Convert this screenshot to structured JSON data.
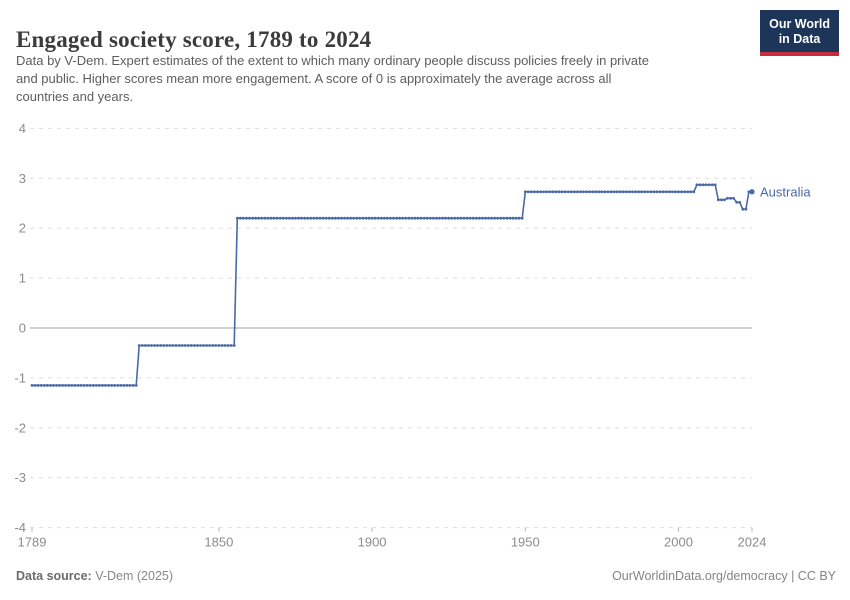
{
  "header": {
    "title": "Engaged society score, 1789 to 2024",
    "subtitle_lines": [
      "Data by V-Dem. Expert estimates of the extent to which many ordinary people discuss policies freely in private",
      "and public. Higher scores mean more engagement. A score of 0 is approximately the average across all",
      "countries and years."
    ],
    "logo": {
      "line1": "Our World",
      "line2": "in Data",
      "bg_color": "#1d3558",
      "accent_color": "#c52f3d"
    }
  },
  "footer": {
    "source_label": "Data source:",
    "source_value": " V-Dem (2025)",
    "attribution": "OurWorldinData.org/democracy | CC BY"
  },
  "chart_data": {
    "type": "line",
    "title": "Engaged society score, 1789 to 2024",
    "xlabel": "",
    "ylabel": "",
    "xlim": [
      1789,
      2024
    ],
    "ylim": [
      -4,
      4
    ],
    "x_ticks": [
      1789,
      1850,
      1900,
      1950,
      2000,
      2024
    ],
    "y_ticks": [
      4,
      3,
      2,
      1,
      0,
      -1,
      -2,
      -3,
      -4
    ],
    "grid": "horizontal-dashed, zero-line solid",
    "legend_position": "end-of-line-label",
    "marker_style": "small dot every year (beaded line)",
    "colors": {
      "line": "#4a69a8",
      "grid": "#dedede",
      "zero_line": "#a6a6a6",
      "tick_label": "#8c8c8c"
    },
    "series": [
      {
        "name": "Australia",
        "color": "#4a69a8",
        "step_segments": [
          {
            "from": 1789,
            "to": 1823,
            "value": -1.15
          },
          {
            "from": 1824,
            "to": 1855,
            "value": -0.35
          },
          {
            "from": 1856,
            "to": 1949,
            "value": 2.2
          },
          {
            "from": 1950,
            "to": 2005,
            "value": 2.73
          },
          {
            "from": 2006,
            "to": 2012,
            "value": 2.87
          },
          {
            "from": 2013,
            "to": 2015,
            "value": 2.57
          },
          {
            "from": 2016,
            "to": 2018,
            "value": 2.6
          },
          {
            "from": 2019,
            "to": 2020,
            "value": 2.52
          },
          {
            "from": 2021,
            "to": 2022,
            "value": 2.38
          },
          {
            "from": 2023,
            "to": 2024,
            "value": 2.73
          }
        ]
      }
    ]
  }
}
